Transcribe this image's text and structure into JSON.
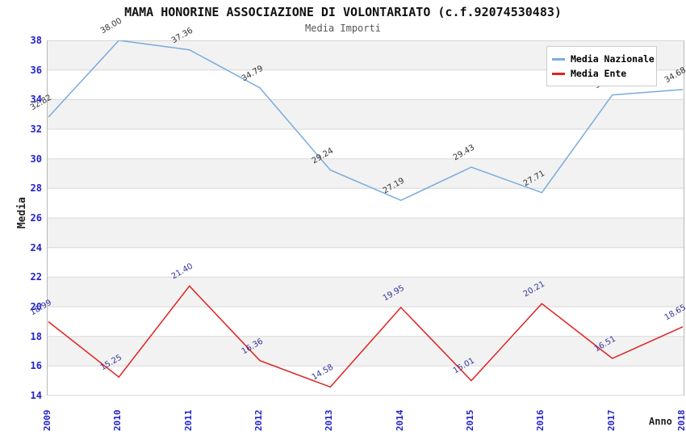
{
  "chart_data": {
    "type": "line",
    "title": "MAMA HONORINE ASSOCIAZIONE DI VOLONTARIATO (c.f.92074530483)",
    "subtitle": "Media Importi",
    "xlabel": "Anno",
    "ylabel": "Media",
    "categories": [
      "2009",
      "2010",
      "2011",
      "2012",
      "2013",
      "2014",
      "2015",
      "2016",
      "2017",
      "2018"
    ],
    "ylim": [
      14,
      38
    ],
    "ytick_step": 2,
    "grid": "horizontal-bands",
    "legend_position": "top-right",
    "series": [
      {
        "name": "Media Nazionale",
        "color": "#7aabde",
        "label_color": "#333333",
        "values": [
          32.82,
          38.0,
          37.36,
          34.79,
          29.24,
          27.19,
          29.43,
          27.71,
          34.31,
          34.68
        ]
      },
      {
        "name": "Media Ente",
        "color": "#e02222",
        "label_color": "#333399",
        "values": [
          18.99,
          15.25,
          21.4,
          16.36,
          14.58,
          19.95,
          15.01,
          20.21,
          16.51,
          18.65
        ]
      }
    ]
  },
  "colors": {
    "tick_text": "#2222cc",
    "grid_line": "#d8d8d8",
    "plot_border": "#b8b8b8",
    "band": "#f2f2f2",
    "title_text": "#111111",
    "subtitle_text": "#555555",
    "axis_title_text": "#222222"
  }
}
